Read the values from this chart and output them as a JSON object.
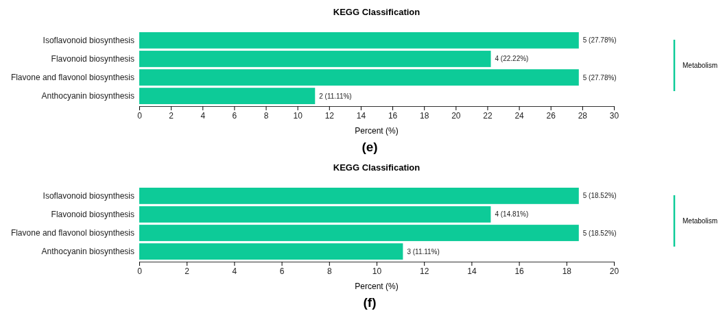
{
  "chart_data": [
    {
      "type": "bar",
      "orientation": "horizontal",
      "title": "KEGG Classification",
      "xlabel": "Percent (%)",
      "categories": [
        "Isoflavonoid biosynthesis",
        "Flavonoid biosynthesis",
        "Flavone and flavonol biosynthesis",
        "Anthocyanin biosynthesis"
      ],
      "values": [
        27.78,
        22.22,
        27.78,
        11.11
      ],
      "value_labels": [
        "5 (27.78%)",
        "4 (22.22%)",
        "5 (27.78%)",
        "2 (11.11%)"
      ],
      "color": "#0dcb98",
      "xlim": [
        0,
        30
      ],
      "xticks": [
        0,
        2,
        4,
        6,
        8,
        10,
        12,
        14,
        16,
        18,
        20,
        22,
        24,
        26,
        28,
        30
      ],
      "grid": false,
      "annotations": [
        "Metabolism",
        "(e)"
      ]
    },
    {
      "type": "bar",
      "orientation": "horizontal",
      "title": "KEGG Classification",
      "xlabel": "Percent (%)",
      "categories": [
        "Isoflavonoid biosynthesis",
        "Flavonoid biosynthesis",
        "Flavone and flavonol biosynthesis",
        "Anthocyanin biosynthesis"
      ],
      "values": [
        18.52,
        14.81,
        18.52,
        11.11
      ],
      "value_labels": [
        "5 (18.52%)",
        "4 (14.81%)",
        "5 (18.52%)",
        "3 (11.11%)"
      ],
      "color": "#0dcb98",
      "xlim": [
        0,
        20
      ],
      "xticks": [
        0,
        2,
        4,
        6,
        8,
        10,
        12,
        14,
        16,
        18,
        20
      ],
      "grid": false,
      "annotations": [
        "Metabolism",
        "(f)"
      ]
    }
  ]
}
